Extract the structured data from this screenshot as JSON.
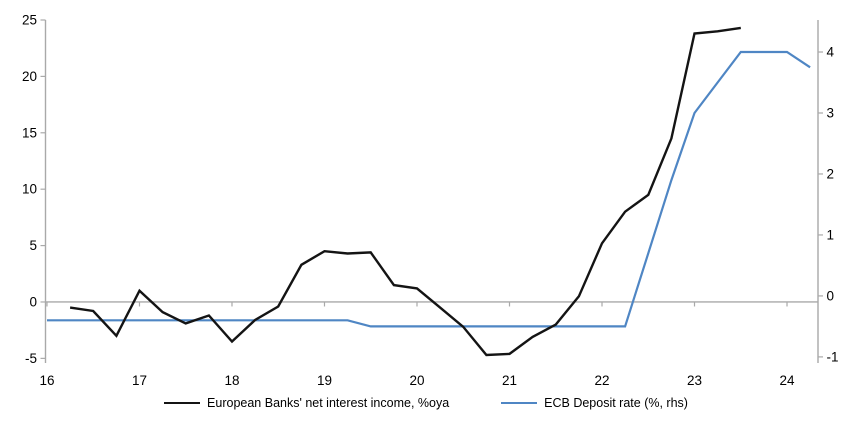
{
  "chart_data": {
    "type": "line",
    "title": "",
    "grid": "zero-line-only",
    "legend_position": "bottom",
    "axis_color": "#A9A9A9",
    "text_color": "#000000",
    "x_axis": {
      "ticks": [
        16,
        17,
        18,
        19,
        20,
        21,
        22,
        23,
        24
      ],
      "tick_labels": [
        "16",
        "17",
        "18",
        "19",
        "20",
        "21",
        "22",
        "23",
        "24"
      ],
      "range": [
        15.984,
        24.335
      ]
    },
    "left_axis": {
      "ticks": [
        25,
        20,
        15,
        10,
        5,
        0,
        -5
      ],
      "tick_labels": [
        "25",
        "20",
        "15",
        "10",
        "5",
        "0",
        "-5"
      ],
      "range": [
        -5.41,
        25.0
      ]
    },
    "right_axis": {
      "ticks": [
        4,
        3,
        2,
        1,
        0,
        -1
      ],
      "tick_labels": [
        "4",
        "3",
        "2",
        "1",
        "0",
        "-1"
      ],
      "range": [
        -1.1,
        4.525
      ]
    },
    "series": [
      {
        "key": "european-banks-nii",
        "name": "European Banks' net interest income, %oya",
        "axis": "left",
        "color": "#141414",
        "width": 2.4,
        "x": [
          16.25,
          16.5,
          16.75,
          17.0,
          17.25,
          17.5,
          17.75,
          18.0,
          18.25,
          18.5,
          18.75,
          19.0,
          19.25,
          19.5,
          19.75,
          20.0,
          20.25,
          20.5,
          20.75,
          21.0,
          21.25,
          21.5,
          21.75,
          22.0,
          22.25,
          22.5,
          22.75,
          23.0,
          23.25,
          23.5
        ],
        "values": [
          -0.5,
          -0.8,
          -3.0,
          1.0,
          -0.9,
          -1.9,
          -1.2,
          -3.5,
          -1.6,
          -0.4,
          3.3,
          4.5,
          4.3,
          4.4,
          1.5,
          1.2,
          -0.5,
          -2.2,
          -4.7,
          -4.6,
          -3.1,
          -2.0,
          0.5,
          5.2,
          8.0,
          9.5,
          14.5,
          23.8,
          24.0,
          24.3
        ]
      },
      {
        "key": "ecb-deposit-rate",
        "name": "ECB Deposit rate (%, rhs)",
        "axis": "right",
        "color": "#4F86C4",
        "width": 2.2,
        "x": [
          16.0,
          19.25,
          19.5,
          22.25,
          22.5,
          22.75,
          23.0,
          23.25,
          23.5,
          24.0,
          24.25
        ],
        "values": [
          -0.4,
          -0.4,
          -0.5,
          -0.5,
          0.7,
          1.9,
          3.0,
          3.5,
          4.0,
          4.0,
          3.75
        ]
      }
    ]
  },
  "legend": {
    "items": [
      {
        "label": "European Banks' net interest income, %oya"
      },
      {
        "label": "ECB Deposit rate (%, rhs)"
      }
    ]
  }
}
